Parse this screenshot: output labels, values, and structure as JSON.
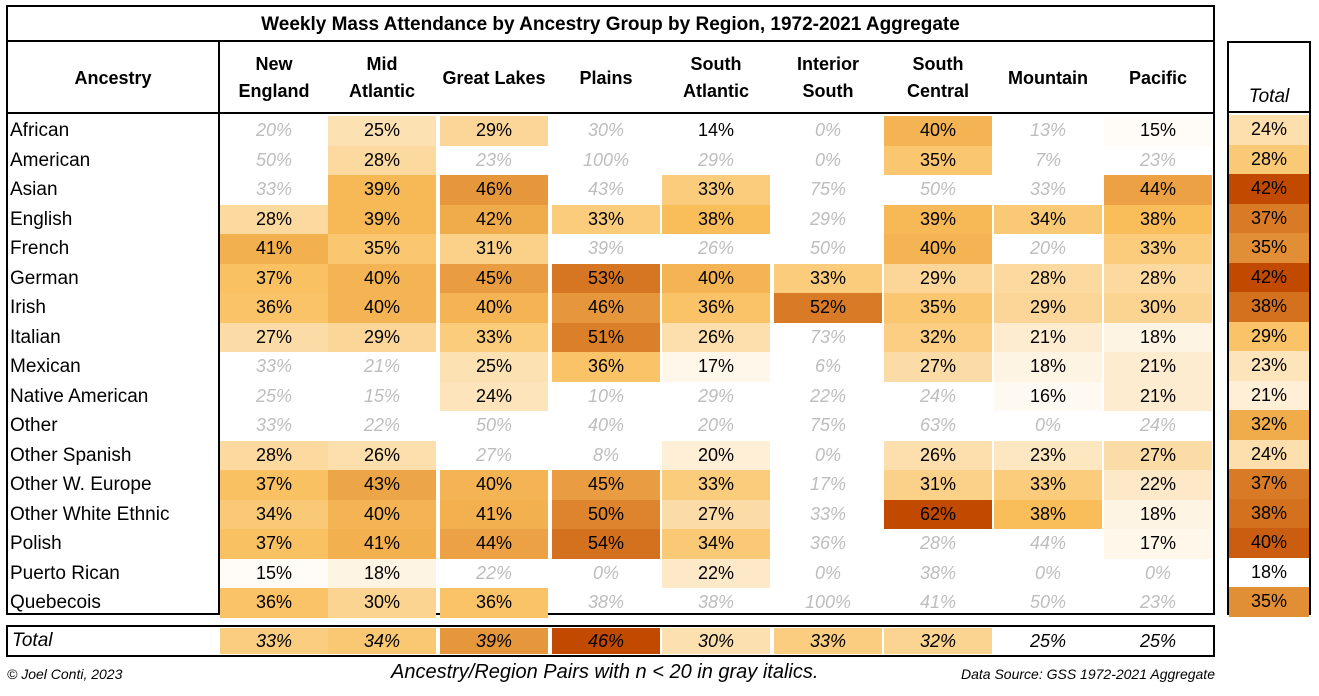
{
  "chart_data": {
    "type": "heatmap",
    "title": "Weekly Mass Attendance by Ancestry Group by Region, 1972-2021 Aggregate",
    "row_header": "Ancestry",
    "columns": [
      "New\nEngland",
      "Mid\nAtlantic",
      "Great Lakes",
      "Plains",
      "South\nAtlantic",
      "Interior\nSouth",
      "South\nCentral",
      "Mountain",
      "Pacific"
    ],
    "total_header": "Total",
    "rows": [
      {
        "label": "African",
        "values": [
          20,
          25,
          29,
          30,
          14,
          0,
          40,
          13,
          15
        ],
        "small_n": [
          true,
          false,
          false,
          true,
          false,
          true,
          false,
          true,
          false
        ],
        "total": 24
      },
      {
        "label": "American",
        "values": [
          50,
          28,
          23,
          100,
          29,
          0,
          35,
          7,
          23
        ],
        "small_n": [
          true,
          false,
          true,
          true,
          true,
          true,
          false,
          true,
          true
        ],
        "total": 28
      },
      {
        "label": "Asian",
        "values": [
          33,
          39,
          46,
          43,
          33,
          75,
          50,
          33,
          44
        ],
        "small_n": [
          true,
          false,
          false,
          true,
          false,
          true,
          true,
          true,
          false
        ],
        "total": 42
      },
      {
        "label": "English",
        "values": [
          28,
          39,
          42,
          33,
          38,
          29,
          39,
          34,
          38
        ],
        "small_n": [
          false,
          false,
          false,
          false,
          false,
          true,
          false,
          false,
          false
        ],
        "total": 37
      },
      {
        "label": "French",
        "values": [
          41,
          35,
          31,
          39,
          26,
          50,
          40,
          20,
          33
        ],
        "small_n": [
          false,
          false,
          false,
          true,
          true,
          true,
          false,
          true,
          false
        ],
        "total": 35
      },
      {
        "label": "German",
        "values": [
          37,
          40,
          45,
          53,
          40,
          33,
          29,
          28,
          28
        ],
        "small_n": [
          false,
          false,
          false,
          false,
          false,
          false,
          false,
          false,
          false
        ],
        "total": 42
      },
      {
        "label": "Irish",
        "values": [
          36,
          40,
          40,
          46,
          36,
          52,
          35,
          29,
          30
        ],
        "small_n": [
          false,
          false,
          false,
          false,
          false,
          false,
          false,
          false,
          false
        ],
        "total": 38
      },
      {
        "label": "Italian",
        "values": [
          27,
          29,
          33,
          51,
          26,
          73,
          32,
          21,
          18
        ],
        "small_n": [
          false,
          false,
          false,
          false,
          false,
          true,
          false,
          false,
          false
        ],
        "total": 29
      },
      {
        "label": "Mexican",
        "values": [
          33,
          21,
          25,
          36,
          17,
          6,
          27,
          18,
          21
        ],
        "small_n": [
          true,
          true,
          false,
          false,
          false,
          true,
          false,
          false,
          false
        ],
        "total": 23
      },
      {
        "label": "Native American",
        "values": [
          25,
          15,
          24,
          10,
          29,
          22,
          24,
          16,
          21
        ],
        "small_n": [
          true,
          true,
          false,
          true,
          true,
          true,
          true,
          false,
          false
        ],
        "total": 21
      },
      {
        "label": "Other",
        "values": [
          33,
          22,
          50,
          40,
          20,
          75,
          63,
          0,
          24
        ],
        "small_n": [
          true,
          true,
          true,
          true,
          true,
          true,
          true,
          true,
          true
        ],
        "total": 32
      },
      {
        "label": "Other Spanish",
        "values": [
          28,
          26,
          27,
          8,
          20,
          0,
          26,
          23,
          27
        ],
        "small_n": [
          false,
          false,
          true,
          true,
          false,
          true,
          false,
          false,
          false
        ],
        "total": 24
      },
      {
        "label": "Other W. Europe",
        "values": [
          37,
          43,
          40,
          45,
          33,
          17,
          31,
          33,
          22
        ],
        "small_n": [
          false,
          false,
          false,
          false,
          false,
          true,
          false,
          false,
          false
        ],
        "total": 37
      },
      {
        "label": "Other White Ethnic",
        "values": [
          34,
          40,
          41,
          50,
          27,
          33,
          62,
          38,
          18
        ],
        "small_n": [
          false,
          false,
          false,
          false,
          false,
          true,
          false,
          false,
          false
        ],
        "total": 38
      },
      {
        "label": "Polish",
        "values": [
          37,
          41,
          44,
          54,
          34,
          36,
          28,
          44,
          17
        ],
        "small_n": [
          false,
          false,
          false,
          false,
          false,
          true,
          true,
          true,
          false
        ],
        "total": 40
      },
      {
        "label": "Puerto Rican",
        "values": [
          15,
          18,
          22,
          0,
          22,
          0,
          38,
          0,
          0
        ],
        "small_n": [
          false,
          false,
          true,
          true,
          false,
          true,
          true,
          true,
          true
        ],
        "total": 18
      },
      {
        "label": "Quebecois",
        "values": [
          36,
          30,
          36,
          38,
          38,
          100,
          41,
          50,
          23
        ],
        "small_n": [
          false,
          false,
          false,
          true,
          true,
          true,
          true,
          true,
          true
        ],
        "total": 35
      }
    ],
    "total_row": {
      "label": "Total",
      "values": [
        33,
        34,
        39,
        46,
        30,
        33,
        32,
        25,
        25
      ]
    },
    "unit": "%",
    "color_scale": {
      "low": "#ffffff",
      "mid": "#f9be5a",
      "high": "#c14a00"
    }
  },
  "footer": {
    "credit": "© Joel Conti, 2023",
    "note": "Ancestry/Region Pairs with n < 20 in gray italics.",
    "source": "Data Source: GSS 1972-2021 Aggregate"
  }
}
